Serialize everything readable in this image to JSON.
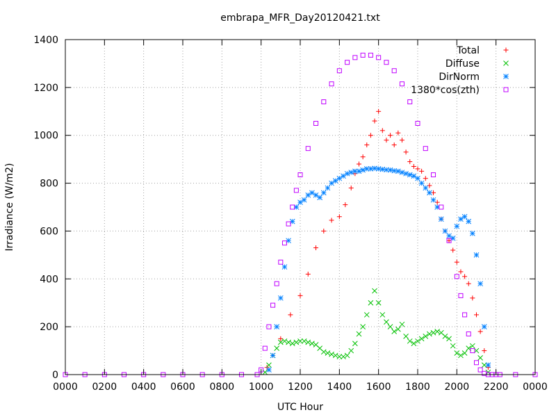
{
  "chart_data": {
    "type": "scatter",
    "title": "embrapa_MFR_Day20120421.txt",
    "xlabel": "UTC Hour",
    "ylabel": "Irradiance (W/m2)",
    "xlim": [
      0,
      24
    ],
    "ylim": [
      0,
      1400
    ],
    "grid": true,
    "legend_position": "top-right",
    "x_ticks": [
      {
        "value": 0,
        "label": "0000"
      },
      {
        "value": 2,
        "label": "0200"
      },
      {
        "value": 4,
        "label": "0400"
      },
      {
        "value": 6,
        "label": "0600"
      },
      {
        "value": 8,
        "label": "0800"
      },
      {
        "value": 10,
        "label": "1000"
      },
      {
        "value": 12,
        "label": "1200"
      },
      {
        "value": 14,
        "label": "1400"
      },
      {
        "value": 16,
        "label": "1600"
      },
      {
        "value": 18,
        "label": "1800"
      },
      {
        "value": 20,
        "label": "2000"
      },
      {
        "value": 22,
        "label": "2200"
      },
      {
        "value": 24,
        "label": "0000"
      }
    ],
    "y_ticks": [
      {
        "value": 0,
        "label": "0"
      },
      {
        "value": 200,
        "label": "200"
      },
      {
        "value": 400,
        "label": "400"
      },
      {
        "value": 600,
        "label": "600"
      },
      {
        "value": 800,
        "label": "800"
      },
      {
        "value": 1000,
        "label": "1000"
      },
      {
        "value": 1200,
        "label": "1200"
      },
      {
        "value": 1400,
        "label": "1400"
      }
    ],
    "series": [
      {
        "name": "Total",
        "marker": "plus",
        "color": "#ff0000",
        "x": [
          10.3,
          10.6,
          11.0,
          11.5,
          12.0,
          12.4,
          12.8,
          13.2,
          13.6,
          14.0,
          14.3,
          14.6,
          14.8,
          15.0,
          15.2,
          15.4,
          15.6,
          15.8,
          16.0,
          16.2,
          16.4,
          16.6,
          16.8,
          17.0,
          17.2,
          17.4,
          17.6,
          17.8,
          18.0,
          18.2,
          18.4,
          18.6,
          18.8,
          19.0,
          19.2,
          19.4,
          19.6,
          19.8,
          20.0,
          20.2,
          20.4,
          20.6,
          20.8,
          21.0,
          21.2,
          21.4,
          21.6
        ],
        "y": [
          30,
          80,
          150,
          250,
          330,
          420,
          530,
          600,
          645,
          660,
          710,
          780,
          840,
          880,
          910,
          960,
          1000,
          1060,
          1100,
          1020,
          980,
          1000,
          960,
          1010,
          980,
          930,
          890,
          870,
          860,
          850,
          820,
          790,
          760,
          720,
          650,
          600,
          560,
          520,
          470,
          430,
          410,
          380,
          320,
          250,
          180,
          100,
          30
        ]
      },
      {
        "name": "Diffuse",
        "marker": "cross",
        "color": "#00c000",
        "x": [
          10.2,
          10.4,
          10.6,
          10.8,
          11.0,
          11.2,
          11.4,
          11.6,
          11.8,
          12.0,
          12.2,
          12.4,
          12.6,
          12.8,
          13.0,
          13.2,
          13.4,
          13.6,
          13.8,
          14.0,
          14.2,
          14.4,
          14.6,
          14.8,
          15.0,
          15.2,
          15.4,
          15.6,
          15.8,
          16.0,
          16.2,
          16.4,
          16.6,
          16.8,
          17.0,
          17.2,
          17.4,
          17.6,
          17.8,
          18.0,
          18.2,
          18.4,
          18.6,
          18.8,
          19.0,
          19.2,
          19.4,
          19.6,
          19.8,
          20.0,
          20.2,
          20.4,
          20.6,
          20.8,
          21.0,
          21.2,
          21.4,
          21.6
        ],
        "y": [
          10,
          40,
          80,
          110,
          135,
          140,
          135,
          130,
          135,
          140,
          140,
          135,
          130,
          125,
          110,
          95,
          90,
          85,
          80,
          75,
          75,
          80,
          100,
          130,
          170,
          200,
          250,
          300,
          350,
          300,
          250,
          220,
          200,
          180,
          190,
          210,
          160,
          140,
          130,
          140,
          150,
          160,
          170,
          175,
          180,
          175,
          160,
          150,
          120,
          90,
          80,
          90,
          110,
          120,
          100,
          70,
          40,
          10
        ]
      },
      {
        "name": "DirNorm",
        "marker": "star",
        "color": "#0080ff",
        "x": [
          10.4,
          10.6,
          10.8,
          11.0,
          11.2,
          11.4,
          11.6,
          11.8,
          12.0,
          12.2,
          12.4,
          12.6,
          12.8,
          13.0,
          13.2,
          13.4,
          13.6,
          13.8,
          14.0,
          14.2,
          14.4,
          14.6,
          14.8,
          15.0,
          15.2,
          15.4,
          15.6,
          15.8,
          16.0,
          16.2,
          16.4,
          16.6,
          16.8,
          17.0,
          17.2,
          17.4,
          17.6,
          17.8,
          18.0,
          18.2,
          18.4,
          18.6,
          18.8,
          19.0,
          19.2,
          19.4,
          19.6,
          19.8,
          20.0,
          20.2,
          20.4,
          20.6,
          20.8,
          21.0,
          21.2,
          21.4,
          21.6
        ],
        "y": [
          20,
          80,
          200,
          320,
          450,
          560,
          640,
          700,
          720,
          730,
          750,
          760,
          750,
          740,
          760,
          780,
          800,
          810,
          820,
          830,
          840,
          845,
          850,
          850,
          855,
          860,
          860,
          862,
          860,
          858,
          856,
          855,
          852,
          850,
          845,
          840,
          835,
          830,
          820,
          800,
          780,
          760,
          730,
          700,
          650,
          600,
          580,
          570,
          620,
          650,
          660,
          640,
          590,
          500,
          380,
          200,
          40
        ]
      },
      {
        "name": "1380*cos(zth)",
        "marker": "square",
        "color": "#c000ff",
        "x": [
          0,
          1,
          2,
          3,
          4,
          5,
          6,
          7,
          8,
          9,
          9.8,
          10.0,
          10.2,
          10.4,
          10.6,
          10.8,
          11.0,
          11.2,
          11.4,
          11.6,
          11.8,
          12.0,
          12.4,
          12.8,
          13.2,
          13.6,
          14.0,
          14.4,
          14.8,
          15.2,
          15.6,
          16.0,
          16.4,
          16.8,
          17.2,
          17.6,
          18.0,
          18.4,
          18.8,
          19.2,
          19.6,
          20.0,
          20.2,
          20.4,
          20.6,
          20.8,
          21.0,
          21.2,
          21.4,
          21.6,
          21.8,
          22.0,
          22.2,
          23,
          24
        ],
        "y": [
          0,
          0,
          0,
          0,
          0,
          0,
          0,
          0,
          0,
          0,
          0,
          20,
          110,
          200,
          290,
          380,
          470,
          550,
          630,
          700,
          770,
          835,
          945,
          1050,
          1140,
          1215,
          1270,
          1305,
          1325,
          1335,
          1335,
          1325,
          1305,
          1270,
          1215,
          1140,
          1050,
          945,
          835,
          700,
          560,
          410,
          330,
          250,
          170,
          100,
          50,
          20,
          5,
          0,
          0,
          0,
          0,
          0,
          0
        ]
      }
    ]
  }
}
